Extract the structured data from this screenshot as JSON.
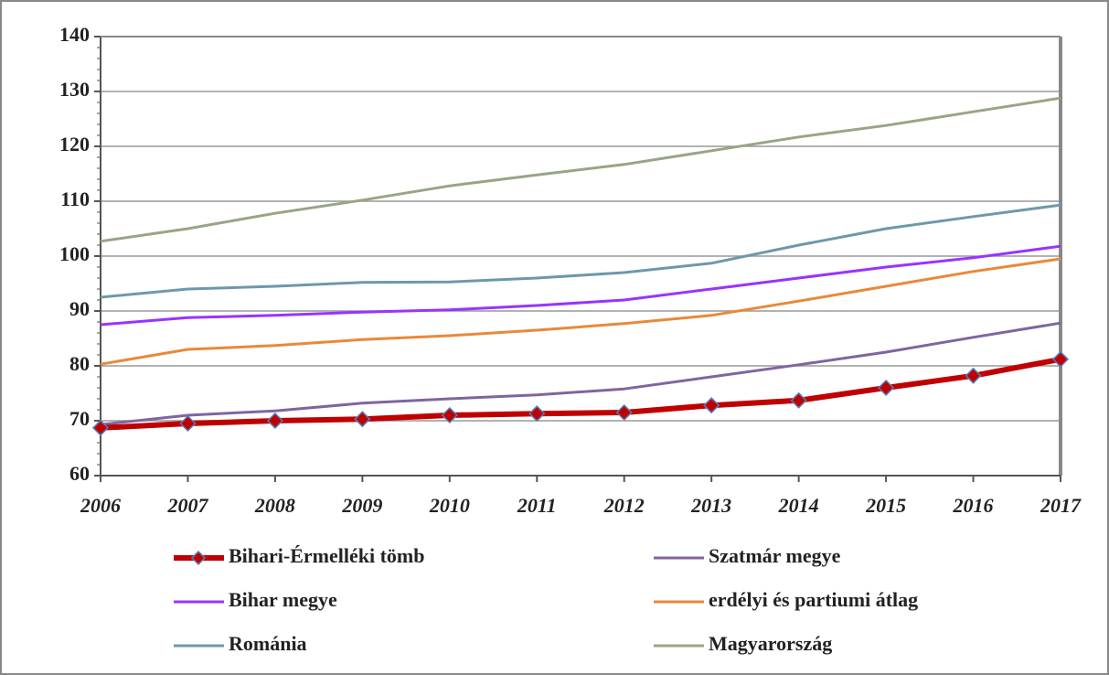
{
  "chart_data": {
    "type": "line",
    "x": [
      2006,
      2007,
      2008,
      2009,
      2010,
      2011,
      2012,
      2013,
      2014,
      2015,
      2016,
      2017
    ],
    "xlim": [
      2006,
      2017
    ],
    "xticks": [
      2006,
      2007,
      2008,
      2009,
      2010,
      2011,
      2012,
      2013,
      2014,
      2015,
      2016,
      2017
    ],
    "ylim": [
      60,
      140
    ],
    "yticks": [
      60,
      70,
      80,
      90,
      100,
      110,
      120,
      130,
      140
    ],
    "grid": true,
    "legend": "bottom",
    "series": [
      {
        "name": "Bihari-Érmelléki tömb",
        "color": "#c00000",
        "marker": "diamond",
        "values": [
          68.7,
          69.5,
          70,
          70.3,
          71,
          71.3,
          71.5,
          72.8,
          73.7,
          76,
          78.2,
          81.2
        ]
      },
      {
        "name": "Szatmár megye",
        "color": "#8064a2",
        "values": [
          69.3,
          71,
          71.8,
          73.2,
          74,
          74.7,
          75.8,
          78,
          80.2,
          82.5,
          85.2,
          87.8
        ]
      },
      {
        "name": "Bihar megye",
        "color": "#9933ff",
        "values": [
          87.5,
          88.8,
          89.2,
          89.8,
          90.2,
          91,
          92,
          94,
          96,
          98,
          99.7,
          101.8
        ]
      },
      {
        "name": "erdélyi és partiumi átlag",
        "color": "#e8893a",
        "values": [
          80.3,
          83,
          83.7,
          84.8,
          85.5,
          86.5,
          87.7,
          89.2,
          91.8,
          94.5,
          97.2,
          99.5
        ]
      },
      {
        "name": "Románia",
        "color": "#6e98aa",
        "values": [
          92.5,
          94,
          94.5,
          95.2,
          95.3,
          96,
          97,
          98.7,
          102,
          105,
          107.2,
          109.3
        ]
      },
      {
        "name": "Magyarország",
        "color": "#98a585",
        "values": [
          102.7,
          105,
          107.8,
          110.2,
          112.8,
          114.8,
          116.7,
          119.2,
          121.7,
          123.8,
          126.3,
          128.8
        ]
      }
    ]
  }
}
